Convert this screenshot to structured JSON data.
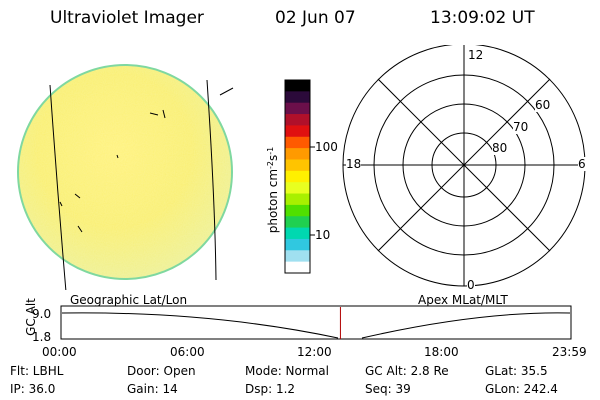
{
  "header": {
    "title": "Ultraviolet Imager",
    "date": "02 Jun 07",
    "time": "13:09:02 UT"
  },
  "colorbar": {
    "label_main": "photon cm",
    "label_exp1": "-2",
    "label_mid": "s",
    "label_exp2": "-1",
    "ticks": [
      "100",
      "10"
    ],
    "colors": [
      "#000000",
      "#2b0a3a",
      "#6b0f4a",
      "#b0102a",
      "#e01010",
      "#ff5a00",
      "#ff9a00",
      "#ffc400",
      "#fff000",
      "#e8ff20",
      "#a8f000",
      "#50e000",
      "#20d050",
      "#00d8b0",
      "#30c8e0",
      "#a0e0f0",
      "#ffffff"
    ]
  },
  "polar": {
    "mlt_labels": [
      "12",
      "18",
      "6",
      "0"
    ],
    "lat_labels": [
      "60",
      "70",
      "80"
    ]
  },
  "timeline": {
    "left_title": "Geographic Lat/Lon",
    "right_title": "Apex MLat/MLT",
    "axis_label": "GC Alt",
    "y_top": "9.0",
    "y_bottom": "1.8",
    "x_ticks": [
      "00:00",
      "06:00",
      "12:00",
      "18:00",
      "23:59"
    ],
    "current_time_fraction": 0.5479
  },
  "info": {
    "row1": {
      "flt": "Flt: LBHL",
      "door": "Door: Open",
      "mode": "Mode: Normal",
      "gcalt": "GC Alt: 2.8 Re",
      "glat": "GLat:  35.5"
    },
    "row2": {
      "ip": "IP: 36.0",
      "gain": "Gain: 14",
      "dsp": "Dsp:     1.2",
      "seq": "Seq: 39",
      "glon": "GLon: 242.4"
    }
  }
}
